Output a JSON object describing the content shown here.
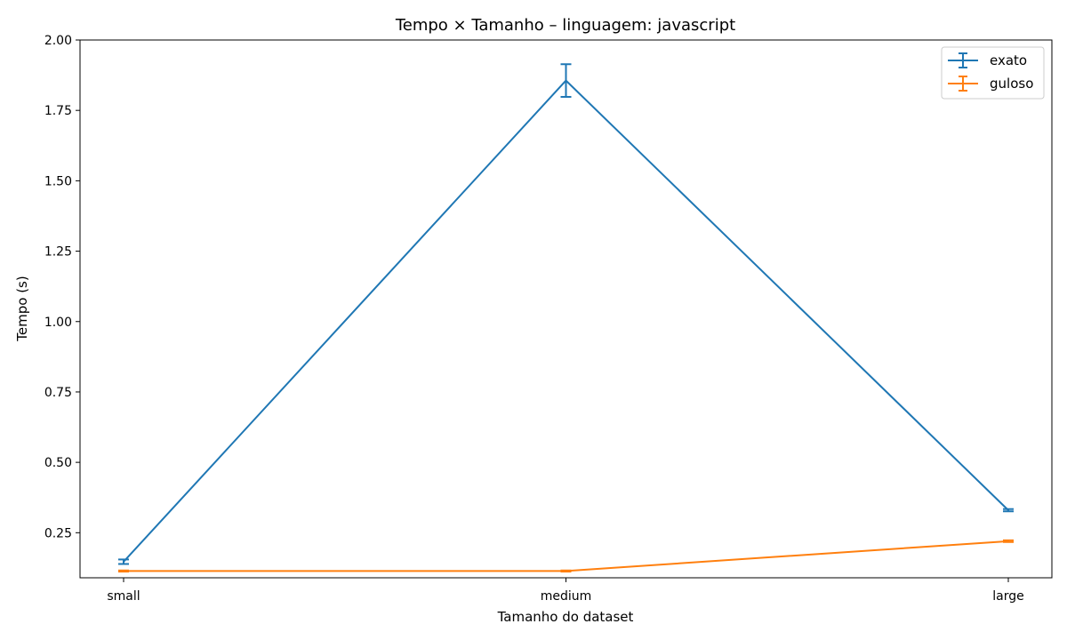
{
  "chart_data": {
    "type": "line",
    "title": "Tempo × Tamanho – linguagem: javascript",
    "xlabel": "Tamanho do dataset",
    "ylabel": "Tempo (s)",
    "categories": [
      "small",
      "medium",
      "large"
    ],
    "ylim": [
      0.09,
      2.0
    ],
    "yticks": [
      0.25,
      0.5,
      0.75,
      1.0,
      1.25,
      1.5,
      1.75,
      2.0
    ],
    "ytick_labels": [
      "0.25",
      "0.50",
      "0.75",
      "1.00",
      "1.25",
      "1.50",
      "1.75",
      "2.00"
    ],
    "grid": false,
    "legend_position": "top-right",
    "error_bars": true,
    "series": [
      {
        "name": "exato",
        "color": "#1f77b4",
        "values": [
          0.147,
          1.856,
          0.33
        ],
        "errors": [
          0.008,
          0.058,
          0.004
        ]
      },
      {
        "name": "guloso",
        "color": "#ff7f0e",
        "values": [
          0.114,
          0.114,
          0.22
        ],
        "errors": [
          0.002,
          0.002,
          0.003
        ]
      }
    ]
  }
}
